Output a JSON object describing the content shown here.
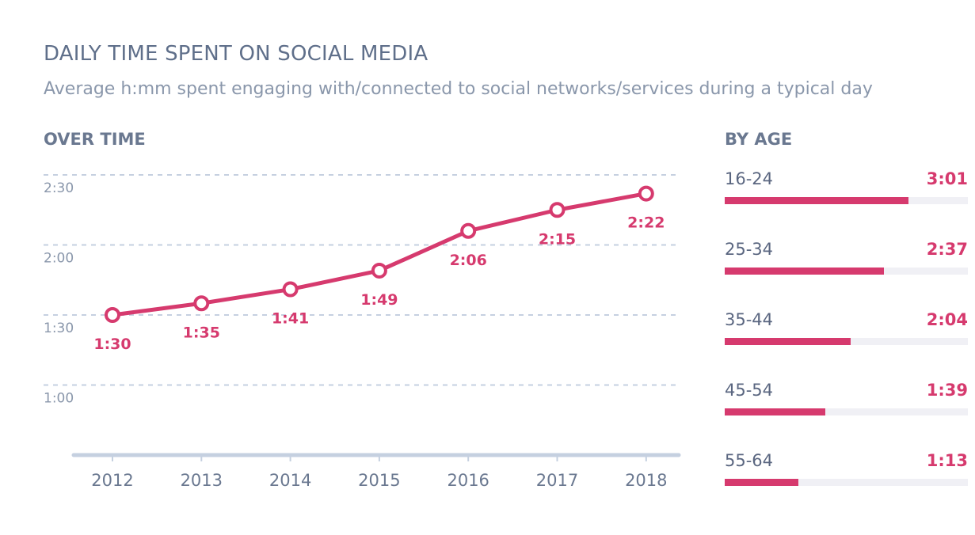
{
  "header": {
    "title": "DAILY TIME SPENT ON SOCIAL MEDIA",
    "subtitle": "Average h:mm spent engaging with/connected to social networks/services during a typical day"
  },
  "colors": {
    "accent": "#d63a6e",
    "text": "#5f6f8a",
    "muted": "#8a97ab",
    "grid": "#c5d0e0",
    "track": "#f0f0f5"
  },
  "chart_data": [
    {
      "type": "line",
      "title": "OVER TIME",
      "x": [
        "2012",
        "2013",
        "2014",
        "2015",
        "2016",
        "2017",
        "2018"
      ],
      "values": [
        90,
        95,
        101,
        109,
        126,
        135,
        142
      ],
      "value_labels": [
        "1:30",
        "1:35",
        "1:41",
        "1:49",
        "2:06",
        "2:15",
        "2:22"
      ],
      "y_ticks": [
        60,
        90,
        120,
        150
      ],
      "y_tick_labels": [
        "1:00",
        "1:30",
        "2:00",
        "2:30"
      ],
      "ylim": [
        30,
        150
      ],
      "grid": true,
      "marker": "hollow-circle"
    },
    {
      "type": "bar",
      "orientation": "horizontal",
      "title": "BY AGE",
      "categories": [
        "16-24",
        "25-34",
        "35-44",
        "45-54",
        "55-64"
      ],
      "values": [
        181,
        157,
        124,
        99,
        73
      ],
      "value_labels": [
        "3:01",
        "2:37",
        "2:04",
        "1:39",
        "1:13"
      ]
    }
  ]
}
